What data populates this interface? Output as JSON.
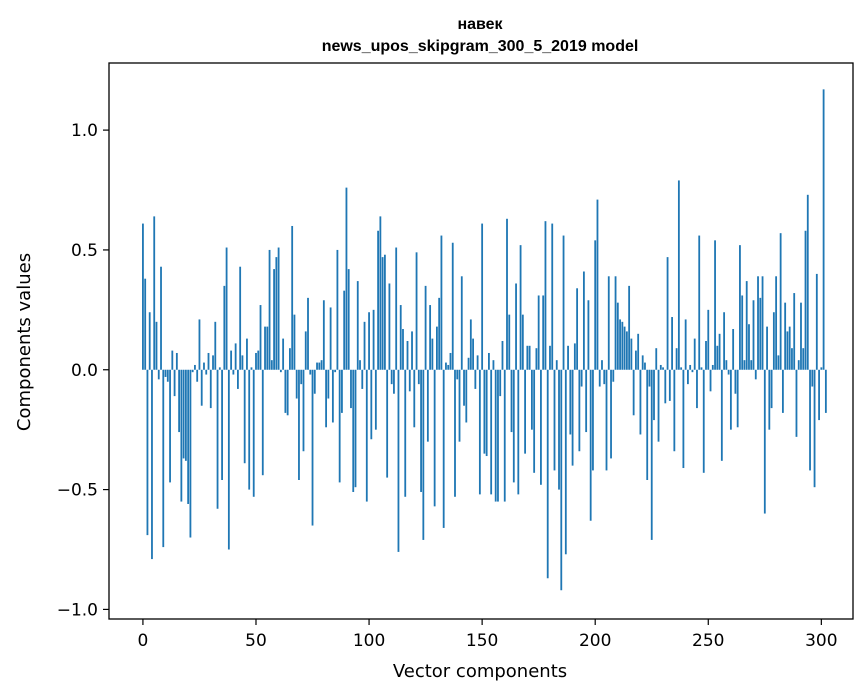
{
  "chart_data": {
    "type": "bar",
    "title_line1": "навек",
    "title_line2": "news_upos_skipgram_300_5_2019 model",
    "xlabel": "Vector components",
    "ylabel": "Components values",
    "xlim": [
      -15,
      314
    ],
    "ylim": [
      -1.04,
      1.28
    ],
    "x_ticks": [
      0,
      50,
      100,
      150,
      200,
      250,
      300
    ],
    "y_ticks": [
      -1.0,
      -0.5,
      0.0,
      0.5,
      1.0
    ],
    "y_tick_labels": [
      "−1.0",
      "−0.5",
      "0.0",
      "0.5",
      "1.0"
    ],
    "grid": false,
    "bar_color": "#1f77b4",
    "values": [
      0.61,
      0.38,
      -0.69,
      0.24,
      -0.79,
      0.64,
      0.2,
      -0.04,
      0.43,
      -0.74,
      -0.03,
      -0.05,
      -0.47,
      0.08,
      -0.11,
      0.07,
      -0.26,
      -0.55,
      -0.37,
      -0.38,
      -0.56,
      -0.7,
      -0.01,
      0.02,
      -0.05,
      0.21,
      -0.15,
      0.03,
      -0.02,
      0.07,
      -0.16,
      0.06,
      0.2,
      -0.58,
      0.01,
      -0.46,
      0.35,
      0.51,
      -0.75,
      0.08,
      -0.02,
      0.11,
      -0.08,
      0.43,
      0.06,
      -0.39,
      0.13,
      -0.5,
      0.01,
      -0.53,
      0.07,
      0.08,
      0.27,
      -0.44,
      0.18,
      0.18,
      0.5,
      0.04,
      0.42,
      0.47,
      0.51,
      -0.01,
      0.13,
      -0.18,
      -0.19,
      0.09,
      0.6,
      0.23,
      -0.12,
      -0.46,
      -0.06,
      -0.34,
      0.16,
      0.3,
      -0.02,
      -0.65,
      -0.1,
      0.03,
      0.03,
      0.04,
      0.29,
      -0.24,
      -0.12,
      0.26,
      -0.22,
      -0.01,
      0.5,
      -0.47,
      -0.18,
      0.33,
      0.76,
      0.42,
      -0.16,
      -0.51,
      -0.49,
      0.37,
      0.04,
      -0.08,
      0.2,
      -0.55,
      0.24,
      -0.29,
      0.25,
      -0.25,
      0.58,
      0.64,
      0.47,
      0.48,
      -0.45,
      0.36,
      -0.06,
      -0.1,
      0.51,
      -0.76,
      0.27,
      0.17,
      -0.53,
      0.12,
      -0.09,
      0.16,
      -0.24,
      0.49,
      -0.06,
      -0.51,
      -0.71,
      0.35,
      -0.3,
      0.27,
      0.13,
      -0.57,
      0.18,
      0.3,
      0.56,
      -0.66,
      0.03,
      0.02,
      0.07,
      0.53,
      -0.53,
      -0.04,
      -0.3,
      0.39,
      -0.15,
      -0.22,
      0.05,
      0.21,
      0.13,
      -0.08,
      0.06,
      -0.52,
      0.61,
      -0.35,
      -0.36,
      0.07,
      -0.52,
      0.04,
      -0.55,
      -0.55,
      -0.11,
      0.12,
      -0.55,
      0.63,
      0.23,
      -0.26,
      -0.47,
      0.36,
      -0.52,
      0.52,
      0.23,
      -0.35,
      0.1,
      0.1,
      -0.25,
      -0.43,
      0.09,
      0.31,
      -0.48,
      0.31,
      0.62,
      -0.87,
      0.1,
      0.61,
      -0.42,
      0.04,
      -0.5,
      -0.92,
      0.56,
      -0.77,
      0.1,
      -0.27,
      -0.4,
      0.11,
      0.34,
      -0.34,
      -0.07,
      0.41,
      -0.26,
      0.29,
      -0.63,
      -0.42,
      0.54,
      0.71,
      -0.07,
      0.04,
      -0.06,
      -0.42,
      0.39,
      -0.37,
      -0.05,
      0.39,
      0.28,
      0.21,
      0.2,
      0.18,
      0.16,
      0.35,
      0.13,
      -0.19,
      0.08,
      0.15,
      -0.27,
      0.06,
      0.03,
      -0.46,
      -0.07,
      -0.71,
      -0.21,
      0.09,
      -0.3,
      0.02,
      0.01,
      -0.14,
      0.47,
      -0.13,
      0.22,
      -0.34,
      0.09,
      0.79,
      0.01,
      -0.41,
      0.21,
      -0.06,
      0.02,
      -0.01,
      0.13,
      -0.16,
      0.56,
      0.01,
      -0.43,
      0.12,
      0.25,
      -0.09,
      0.02,
      0.54,
      0.1,
      0.15,
      -0.38,
      0.24,
      0.04,
      -0.02,
      -0.25,
      0.17,
      -0.1,
      -0.24,
      0.52,
      0.31,
      0.04,
      0.37,
      0.19,
      0.04,
      0.29,
      -0.04,
      0.39,
      0.3,
      0.39,
      -0.6,
      0.18,
      -0.25,
      -0.16,
      0.24,
      0.39,
      0.06,
      0.57,
      -0.18,
      0.28,
      0.16,
      0.18,
      0.09,
      0.32,
      -0.28,
      0.04,
      0.28,
      0.09,
      0.58,
      0.73,
      -0.42,
      -0.07,
      -0.49,
      0.4,
      -0.21,
      0.01,
      1.17,
      -0.18
    ]
  }
}
